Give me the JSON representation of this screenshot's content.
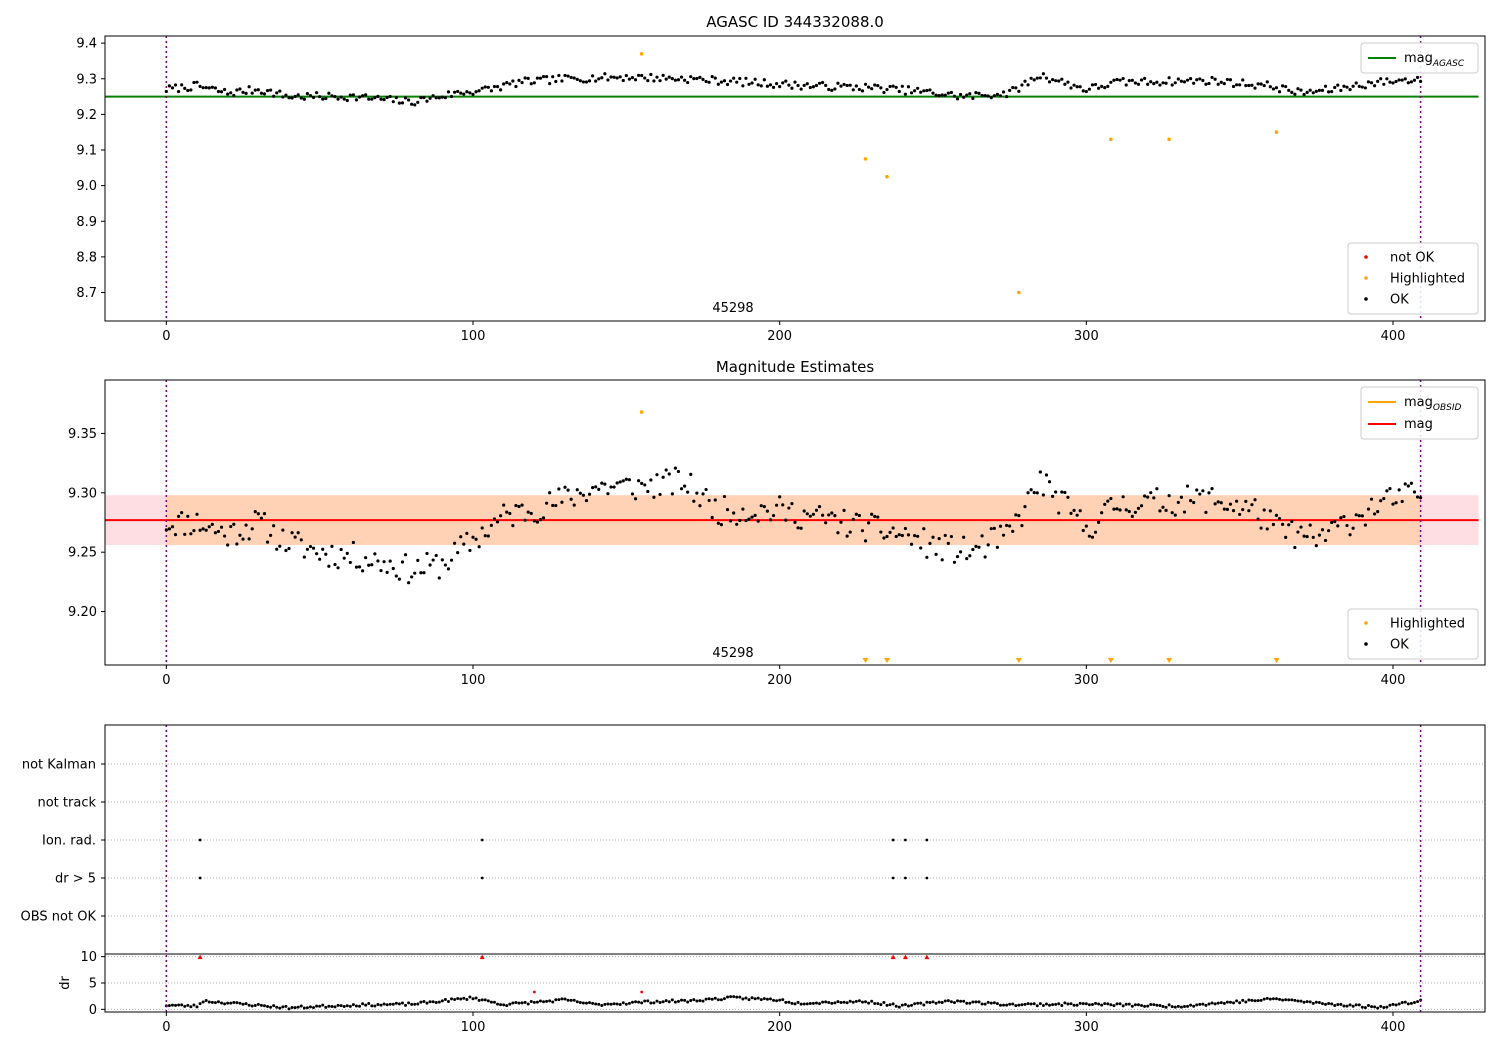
{
  "chart_data": [
    {
      "type": "scatter",
      "title": "AGASC ID 344332088.0",
      "xlim": [
        -20,
        430
      ],
      "ylim": [
        8.62,
        9.42
      ],
      "xticks": [
        0,
        100,
        200,
        300,
        400
      ],
      "yticks": [
        8.7,
        8.8,
        8.9,
        9.0,
        9.1,
        9.2,
        9.3,
        9.4
      ],
      "ytick_labels": [
        "8.7",
        "8.8",
        "8.9",
        "9.0",
        "9.1",
        "9.2",
        "9.3",
        "9.4"
      ],
      "annotation": {
        "text": "45298",
        "x": 204
      },
      "obsid_boundaries": [
        0,
        409
      ],
      "mag_agasc": 9.25,
      "legend_lines": [
        {
          "label": "mag_AGASC",
          "base": "mag",
          "sub": "AGASC",
          "color": "#008000"
        }
      ],
      "legend_markers": [
        {
          "label": "not OK",
          "color": "#ff0000"
        },
        {
          "label": "Highlighted",
          "color": "#ffa500"
        },
        {
          "label": "OK",
          "color": "#000000"
        }
      ],
      "ok_profile": [
        [
          0,
          9.27
        ],
        [
          10,
          9.28
        ],
        [
          20,
          9.26
        ],
        [
          30,
          9.27
        ],
        [
          40,
          9.25
        ],
        [
          60,
          9.25
        ],
        [
          80,
          9.235
        ],
        [
          95,
          9.26
        ],
        [
          105,
          9.27
        ],
        [
          115,
          9.29
        ],
        [
          130,
          9.3
        ],
        [
          150,
          9.305
        ],
        [
          170,
          9.3
        ],
        [
          190,
          9.29
        ],
        [
          210,
          9.28
        ],
        [
          230,
          9.275
        ],
        [
          245,
          9.265
        ],
        [
          260,
          9.25
        ],
        [
          275,
          9.26
        ],
        [
          285,
          9.31
        ],
        [
          300,
          9.27
        ],
        [
          310,
          9.29
        ],
        [
          340,
          9.295
        ],
        [
          360,
          9.28
        ],
        [
          370,
          9.26
        ],
        [
          380,
          9.27
        ],
        [
          395,
          9.29
        ],
        [
          409,
          9.3
        ]
      ],
      "highlighted": [
        [
          155,
          9.37
        ],
        [
          228,
          9.075
        ],
        [
          235,
          9.025
        ],
        [
          278,
          8.7
        ],
        [
          308,
          9.13
        ],
        [
          327,
          9.13
        ],
        [
          362,
          9.15
        ]
      ]
    },
    {
      "type": "scatter",
      "title": "Magnitude Estimates",
      "xlim": [
        -20,
        430
      ],
      "ylim": [
        9.155,
        9.395
      ],
      "xticks": [
        0,
        100,
        200,
        300,
        400
      ],
      "yticks": [
        9.2,
        9.25,
        9.3,
        9.35
      ],
      "ytick_labels": [
        "9.20",
        "9.25",
        "9.30",
        "9.35"
      ],
      "annotation": {
        "text": "45298",
        "x": 204
      },
      "obsid_boundaries": [
        0,
        409
      ],
      "mag": 9.277,
      "mag_band": [
        9.256,
        9.298
      ],
      "legend_lines": [
        {
          "label": "mag_OBSID",
          "base": "mag",
          "sub": "OBSID",
          "color": "#ffa500"
        },
        {
          "label": "mag",
          "base": "mag",
          "sub": "",
          "color": "#ff0000"
        }
      ],
      "legend_markers": [
        {
          "label": "Highlighted",
          "color": "#ffa500"
        },
        {
          "label": "OK",
          "color": "#000000"
        }
      ],
      "ok_profile": [
        [
          0,
          9.275
        ],
        [
          10,
          9.275
        ],
        [
          20,
          9.265
        ],
        [
          30,
          9.275
        ],
        [
          38,
          9.26
        ],
        [
          50,
          9.25
        ],
        [
          65,
          9.245
        ],
        [
          80,
          9.235
        ],
        [
          90,
          9.24
        ],
        [
          100,
          9.26
        ],
        [
          110,
          9.28
        ],
        [
          125,
          9.29
        ],
        [
          140,
          9.305
        ],
        [
          155,
          9.305
        ],
        [
          168,
          9.31
        ],
        [
          180,
          9.285
        ],
        [
          200,
          9.285
        ],
        [
          220,
          9.275
        ],
        [
          240,
          9.265
        ],
        [
          250,
          9.255
        ],
        [
          262,
          9.25
        ],
        [
          275,
          9.265
        ],
        [
          285,
          9.31
        ],
        [
          300,
          9.27
        ],
        [
          310,
          9.29
        ],
        [
          340,
          9.295
        ],
        [
          355,
          9.285
        ],
        [
          362,
          9.27
        ],
        [
          375,
          9.26
        ],
        [
          395,
          9.29
        ],
        [
          409,
          9.3
        ]
      ],
      "highlighted": [
        [
          155,
          9.368
        ]
      ],
      "below_axis_markers": [
        228,
        235,
        278,
        308,
        327,
        362
      ]
    },
    {
      "type": "scatter",
      "title": "",
      "xlim": [
        -20,
        430
      ],
      "xticks": [
        0,
        100,
        200,
        300,
        400
      ],
      "obsid_boundaries": [
        0,
        409
      ],
      "flag_rows": [
        "not Kalman",
        "not track",
        "Ion. rad.",
        "dr > 5",
        "OBS not OK"
      ],
      "flag_points": {
        "Ion. rad.": [
          11,
          103,
          237,
          241,
          248
        ],
        "dr > 5": [
          11,
          103,
          237,
          241,
          248
        ]
      },
      "dr_ylabel": "dr",
      "dr_ylim": [
        -0.5,
        10.5
      ],
      "dr_yticks": [
        0,
        5,
        10
      ],
      "dr_not_ok": [
        [
          11,
          10
        ],
        [
          103,
          10
        ],
        [
          120,
          3.3
        ],
        [
          155,
          3.3
        ],
        [
          237,
          10
        ],
        [
          241,
          10
        ],
        [
          248,
          10
        ]
      ],
      "dr_ok_profile": [
        [
          0,
          0.8
        ],
        [
          10,
          0.6
        ],
        [
          12,
          1.6
        ],
        [
          40,
          0.3
        ],
        [
          60,
          0.8
        ],
        [
          80,
          1.0
        ],
        [
          100,
          2.2
        ],
        [
          110,
          0.9
        ],
        [
          130,
          1.8
        ],
        [
          140,
          0.9
        ],
        [
          160,
          1.5
        ],
        [
          170,
          1.6
        ],
        [
          185,
          2.2
        ],
        [
          200,
          1.8
        ],
        [
          205,
          1.2
        ],
        [
          228,
          1.5
        ],
        [
          240,
          0.6
        ],
        [
          255,
          1.6
        ],
        [
          275,
          0.9
        ],
        [
          300,
          1.0
        ],
        [
          330,
          0.6
        ],
        [
          362,
          2.0
        ],
        [
          375,
          1.2
        ],
        [
          395,
          0.4
        ],
        [
          409,
          1.6
        ]
      ]
    }
  ]
}
